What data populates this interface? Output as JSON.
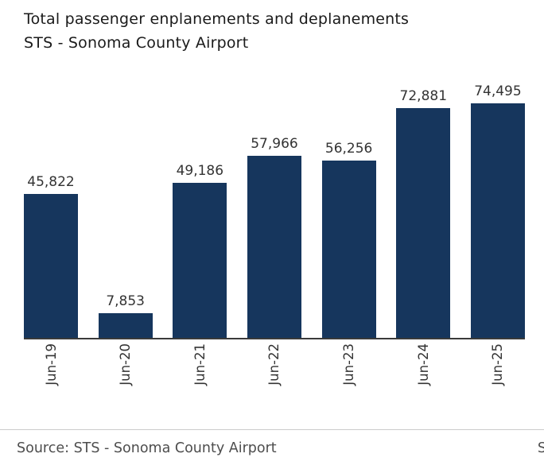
{
  "title": {
    "line1": "Total passenger enplanements and deplanements",
    "line2": "STS - Sonoma County Airport"
  },
  "chart_data": {
    "type": "bar",
    "title": "Total passenger enplanements and deplanements STS - Sonoma County Airport",
    "categories": [
      "Jun-19",
      "Jun-20",
      "Jun-21",
      "Jun-22",
      "Jun-23",
      "Jun-24",
      "Jun-25"
    ],
    "values": [
      45822,
      7853,
      49186,
      57966,
      56256,
      72881,
      74495
    ],
    "value_labels": [
      "45,822",
      "7,853",
      "49,186",
      "57,966",
      "56,256",
      "72,881",
      "74,495"
    ],
    "xlabel": "",
    "ylabel": "",
    "ylim": [
      0,
      74495
    ],
    "grid": false,
    "legend": false,
    "bar_color": "#16365d",
    "axis_line_color": "#3a3a3a",
    "label_color": "#333333",
    "tick_rotation": -90
  },
  "footer": {
    "source": "Source: STS - Sonoma County Airport",
    "truncated_right_text": "S"
  }
}
